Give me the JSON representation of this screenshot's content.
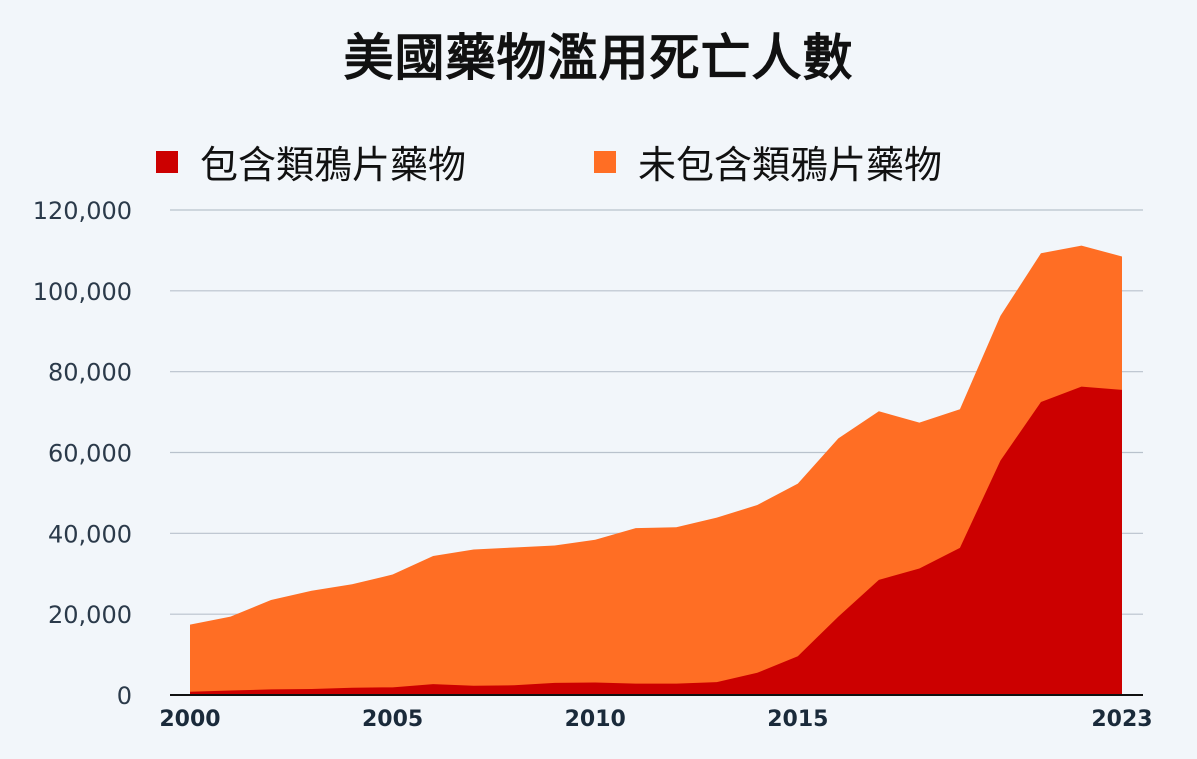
{
  "title": "美國藥物濫用死亡人數",
  "chart_data": {
    "type": "area",
    "stacked": true,
    "title": "美國藥物濫用死亡人數",
    "xlabel": "",
    "ylabel": "",
    "x": [
      2000,
      2001,
      2002,
      2003,
      2004,
      2005,
      2006,
      2007,
      2008,
      2009,
      2010,
      2011,
      2012,
      2013,
      2014,
      2015,
      2016,
      2017,
      2018,
      2019,
      2020,
      2021,
      2022,
      2023
    ],
    "x_tick_labels": [
      "2000",
      "2005",
      "2010",
      "2015",
      "2023"
    ],
    "x_tick_values": [
      2000,
      2005,
      2010,
      2015,
      2023
    ],
    "y_tick_labels": [
      "0",
      "20,000",
      "40,000",
      "60,000",
      "80,000",
      "100,000",
      "120,000"
    ],
    "y_tick_values": [
      0,
      20000,
      40000,
      60000,
      80000,
      100000,
      120000
    ],
    "ylim": [
      0,
      120000
    ],
    "grid": true,
    "legend_position": "top",
    "series": [
      {
        "name": "包含類鴉片藥物",
        "color": "#cc0000",
        "values": [
          800,
          1100,
          1400,
          1500,
          1800,
          1900,
          2700,
          2300,
          2400,
          3000,
          3100,
          2800,
          2800,
          3200,
          5500,
          9600,
          19400,
          28500,
          31300,
          36400,
          58000,
          72500,
          76300,
          75500
        ]
      },
      {
        "name": "未包含類鴉片藥物",
        "color": "#ff6e24",
        "values": [
          16600,
          18300,
          22100,
          24300,
          25600,
          27900,
          31700,
          33700,
          34100,
          34000,
          35300,
          38500,
          38700,
          40700,
          41500,
          42700,
          44100,
          41700,
          36100,
          34300,
          35800,
          36800,
          34900,
          33000
        ]
      }
    ]
  }
}
